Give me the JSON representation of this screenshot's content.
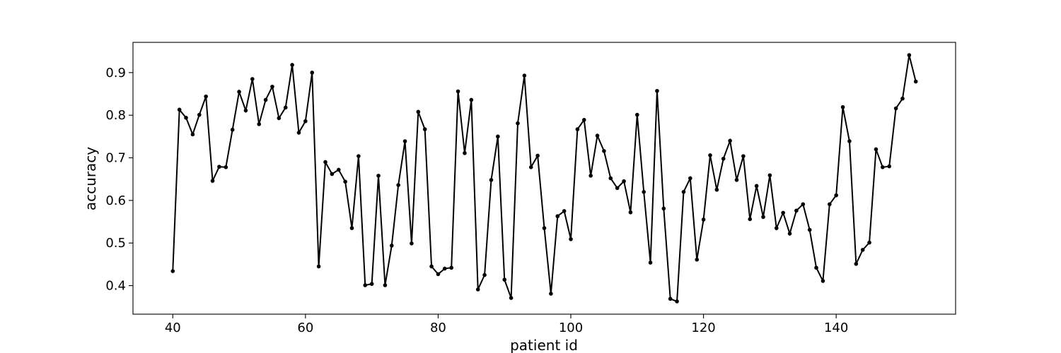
{
  "chart_data": {
    "type": "line",
    "title": "",
    "xlabel": "patient id",
    "ylabel": "accuracy",
    "xlim": [
      34,
      158
    ],
    "ylim": [
      0.333,
      0.971
    ],
    "xticks": [
      40,
      60,
      80,
      100,
      120,
      140
    ],
    "xtick_labels": [
      "40",
      "60",
      "80",
      "100",
      "120",
      "140"
    ],
    "yticks": [
      0.4,
      0.5,
      0.6,
      0.7,
      0.8,
      0.9
    ],
    "ytick_labels": [
      "0.4",
      "0.5",
      "0.6",
      "0.7",
      "0.8",
      "0.9"
    ],
    "grid": false,
    "line_color": "#000000",
    "marker": "dot",
    "series": [
      {
        "x": [
          40,
          41,
          42,
          43,
          44,
          45,
          46,
          47,
          48,
          49,
          50,
          51,
          52,
          53,
          54,
          55,
          56,
          57,
          58,
          59,
          60,
          61,
          62,
          63,
          64,
          65,
          66,
          67,
          68,
          69,
          70,
          71,
          72,
          73,
          74,
          75,
          76,
          77,
          78,
          79,
          80,
          81,
          82,
          83,
          84,
          85,
          86,
          87,
          88,
          89,
          90,
          91,
          92,
          93,
          94,
          95,
          96,
          97,
          98,
          99,
          100,
          101,
          102,
          103,
          104,
          105,
          106,
          107,
          108,
          109,
          110,
          111,
          112,
          113,
          114,
          115,
          116,
          117,
          118,
          119,
          120,
          121,
          122,
          123,
          124,
          125,
          126,
          127,
          128,
          129,
          130,
          131,
          132,
          133,
          134,
          135,
          136,
          137,
          138,
          139,
          140,
          141,
          142,
          143,
          144,
          145,
          146,
          147,
          148,
          149,
          150,
          151,
          152
        ],
        "values": [
          0.434,
          0.813,
          0.794,
          0.755,
          0.801,
          0.844,
          0.646,
          0.679,
          0.678,
          0.766,
          0.855,
          0.811,
          0.885,
          0.779,
          0.836,
          0.867,
          0.793,
          0.818,
          0.918,
          0.759,
          0.786,
          0.9,
          0.445,
          0.69,
          0.662,
          0.672,
          0.644,
          0.535,
          0.704,
          0.401,
          0.404,
          0.658,
          0.401,
          0.494,
          0.636,
          0.739,
          0.499,
          0.808,
          0.767,
          0.445,
          0.427,
          0.44,
          0.442,
          0.856,
          0.711,
          0.836,
          0.391,
          0.425,
          0.648,
          0.75,
          0.414,
          0.371,
          0.781,
          0.893,
          0.678,
          0.705,
          0.535,
          0.381,
          0.563,
          0.575,
          0.509,
          0.767,
          0.789,
          0.658,
          0.752,
          0.716,
          0.652,
          0.629,
          0.645,
          0.572,
          0.801,
          0.62,
          0.454,
          0.857,
          0.581,
          0.369,
          0.363,
          0.62,
          0.652,
          0.461,
          0.555,
          0.706,
          0.625,
          0.698,
          0.74,
          0.648,
          0.704,
          0.556,
          0.634,
          0.561,
          0.659,
          0.535,
          0.571,
          0.522,
          0.576,
          0.591,
          0.531,
          0.442,
          0.411,
          0.591,
          0.612,
          0.819,
          0.739,
          0.451,
          0.484,
          0.501,
          0.72,
          0.678,
          0.68,
          0.816,
          0.839,
          0.941,
          0.879
        ]
      }
    ]
  }
}
